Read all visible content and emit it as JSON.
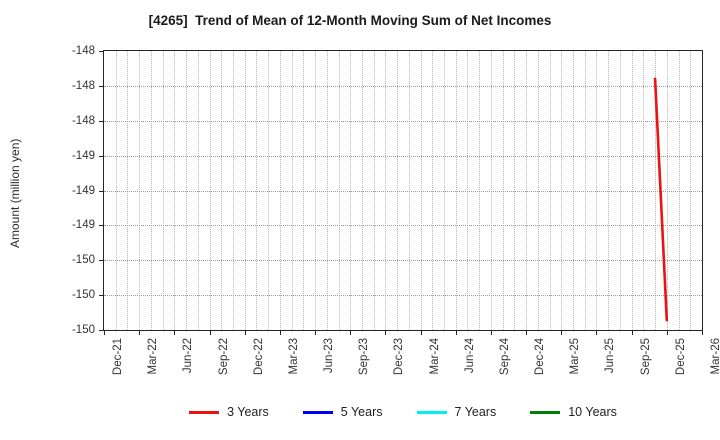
{
  "title": "[4265]  Trend of Mean of 12-Month Moving Sum of Net Incomes",
  "ylabel": "Amount (million yen)",
  "chart_data": {
    "type": "line",
    "title": "[4265]  Trend of Mean of 12-Month Moving Sum of Net Incomes",
    "xlabel": "",
    "ylabel": "Amount (million yen)",
    "ylim": [
      -150.0,
      -148.0
    ],
    "x_range": [
      "Dec-21",
      "Mar-26"
    ],
    "grid": {
      "horizontal": "dotted",
      "vertical": "dotted (monthly)"
    },
    "legend_position": "bottom",
    "x_tick_labels": [
      "Dec-21",
      "Mar-22",
      "Jun-22",
      "Sep-22",
      "Dec-22",
      "Mar-23",
      "Jun-23",
      "Sep-23",
      "Dec-23",
      "Mar-24",
      "Jun-24",
      "Sep-24",
      "Dec-24",
      "Mar-25",
      "Jun-25",
      "Sep-25",
      "Dec-25",
      "Mar-26"
    ],
    "y_ticks": [
      {
        "label": "-148",
        "value": -148.0
      },
      {
        "label": "-148",
        "value": -148.25
      },
      {
        "label": "-148",
        "value": -148.5
      },
      {
        "label": "-149",
        "value": -148.75
      },
      {
        "label": "-149",
        "value": -149.0
      },
      {
        "label": "-149",
        "value": -149.25
      },
      {
        "label": "-150",
        "value": -149.5
      },
      {
        "label": "-150",
        "value": -149.75
      },
      {
        "label": "-150",
        "value": -150.0
      }
    ],
    "series": [
      {
        "name": "3 Years",
        "color": "#ee1111",
        "points": [
          {
            "month": "Nov-25",
            "value": -148.2
          },
          {
            "month": "Dec-25",
            "value": -149.93
          }
        ]
      },
      {
        "name": "5 Years",
        "color": "#0000ee",
        "points": []
      },
      {
        "name": "7 Years",
        "color": "#00eeee",
        "points": []
      },
      {
        "name": "10 Years",
        "color": "#008000",
        "points": []
      }
    ]
  }
}
